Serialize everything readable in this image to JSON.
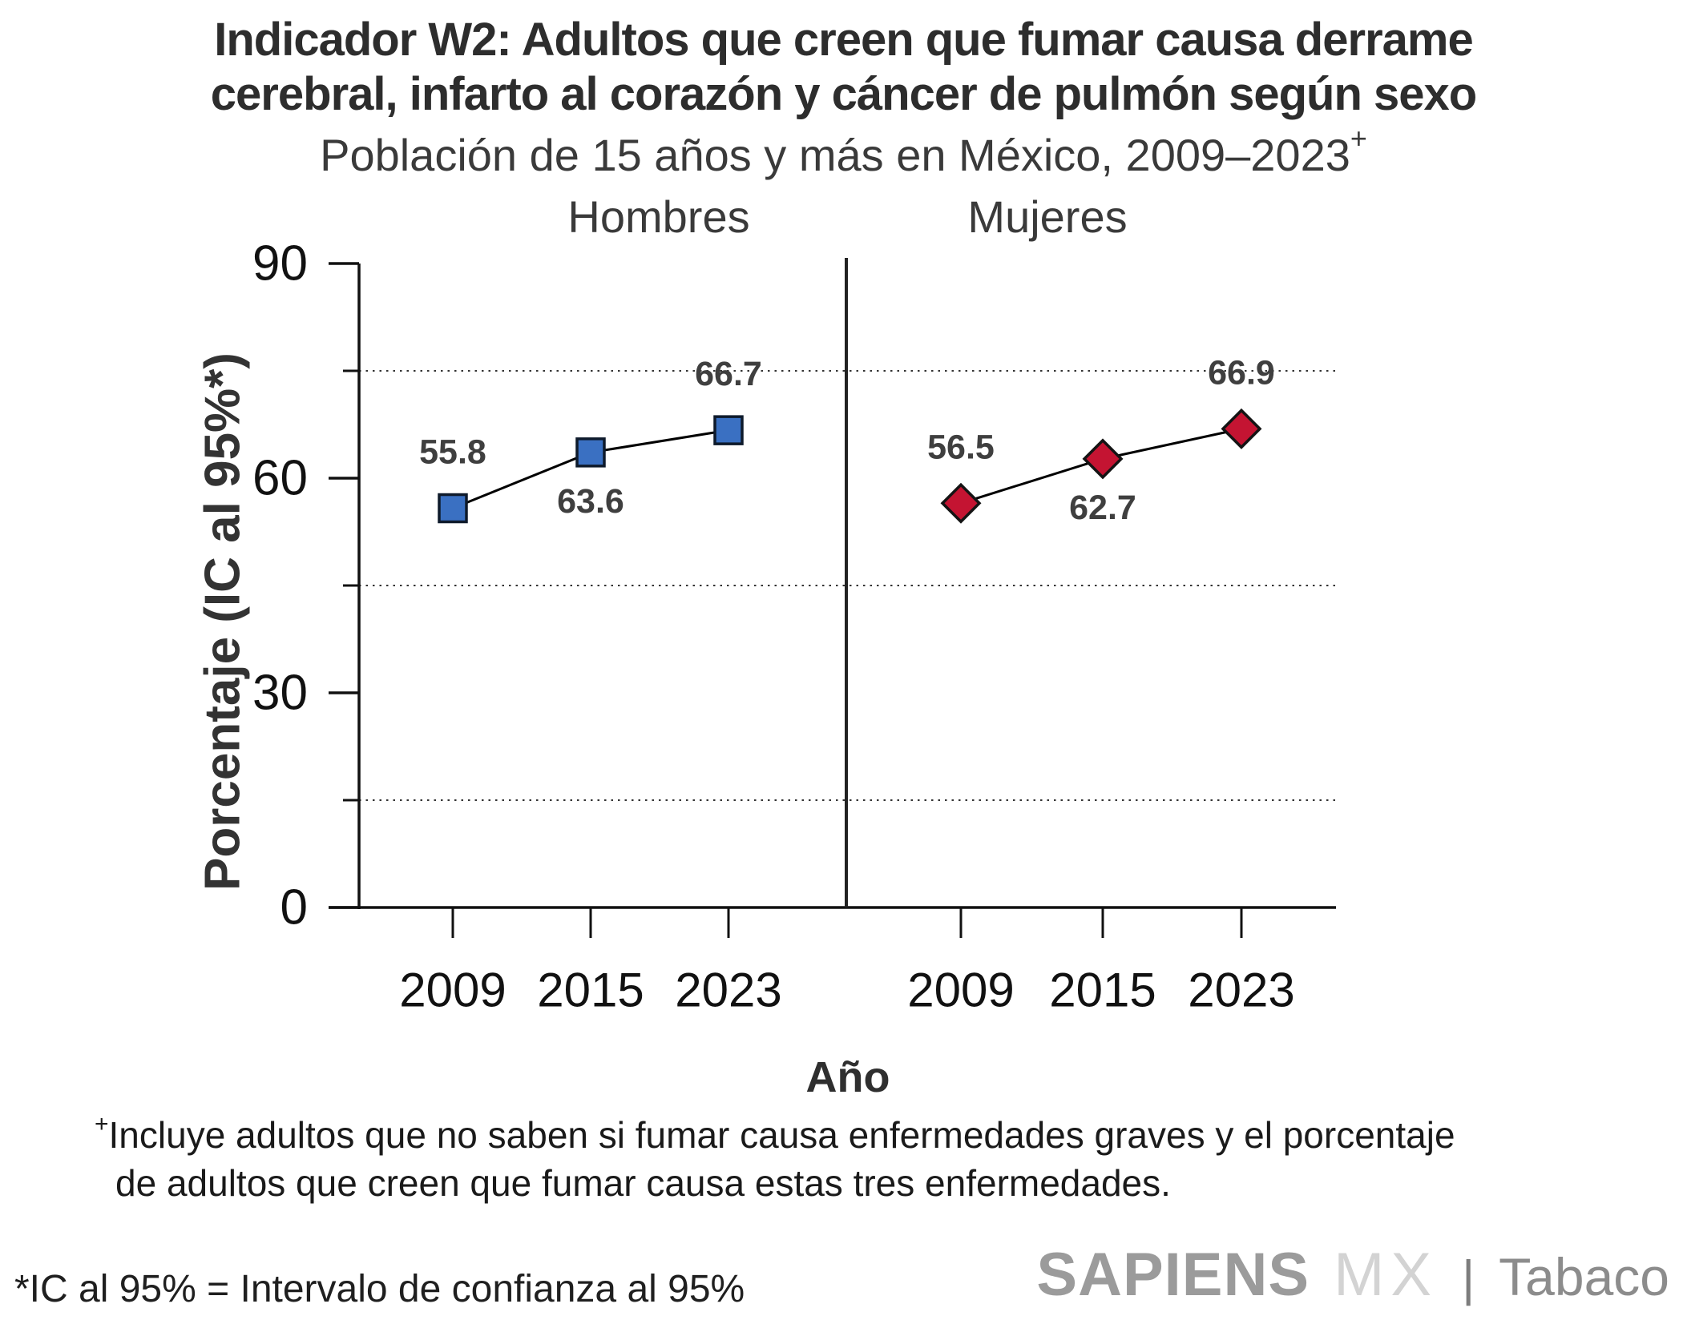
{
  "title": {
    "line1": "Indicador W2: Adultos que creen que fumar causa derrame",
    "line2": "cerebral, infarto al corazón y cáncer de pulmón según sexo"
  },
  "subtitle": {
    "text": "Población de 15 años y más en México, 2009–2023",
    "sup": "+"
  },
  "chart_data": {
    "type": "line",
    "title": "Indicador W2: Adultos que creen que fumar causa derrame cerebral, infarto al corazón y cáncer de pulmón según sexo",
    "subtitle": "Población de 15 años y más en México, 2009–2023+",
    "xlabel": "Año",
    "ylabel": "Porcentaje (IC al 95%*)",
    "ylim": [
      0,
      90
    ],
    "yticks": [
      0,
      30,
      60,
      90
    ],
    "minor_gridlines": [
      15,
      45,
      75
    ],
    "grid": "horizontal dotted lines at minor positions",
    "legend_position": "none",
    "categories": [
      "2009",
      "2015",
      "2023"
    ],
    "value_label_sides": [
      "above",
      "below",
      "above"
    ],
    "panels": [
      {
        "name": "Hombres",
        "marker": "square",
        "color": "#3A70C2",
        "marker_border": "#0e1a2b",
        "values": [
          55.8,
          63.6,
          66.7
        ]
      },
      {
        "name": "Mujeres",
        "marker": "diamond",
        "color": "#C41432",
        "marker_border": "#141414",
        "values": [
          56.5,
          62.7,
          66.9
        ]
      }
    ]
  },
  "footnote": {
    "sup": "+",
    "line1": "Incluye adultos que no saben si fumar causa enfermedades graves y el porcentaje",
    "line2": "de adultos que creen que fumar causa estas tres enfermedades."
  },
  "ic_note": "*IC al 95% = Intervalo de confianza al 95%",
  "logo": {
    "sapiens": "SAPIENS",
    "mx": "MX",
    "separator": "|",
    "product": "Tabaco",
    "colors": {
      "sapiens": "#9b9b9b",
      "mx": "#d3d3d3",
      "separator": "#7d7d7d",
      "product": "#8c8c8c"
    }
  },
  "style_colors": {
    "axis": "#111111",
    "gridline": "#333333",
    "value_label": "#3f3f3f",
    "series_line": "#000000"
  }
}
